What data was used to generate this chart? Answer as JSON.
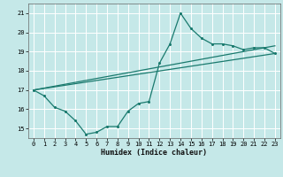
{
  "xlabel": "Humidex (Indice chaleur)",
  "bg_color": "#c5e8e8",
  "grid_color": "#ffffff",
  "line_color": "#1a7a6e",
  "xlim": [
    -0.5,
    23.5
  ],
  "ylim": [
    14.5,
    21.5
  ],
  "xticks": [
    0,
    1,
    2,
    3,
    4,
    5,
    6,
    7,
    8,
    9,
    10,
    11,
    12,
    13,
    14,
    15,
    16,
    17,
    18,
    19,
    20,
    21,
    22,
    23
  ],
  "yticks": [
    15,
    16,
    17,
    18,
    19,
    20,
    21
  ],
  "line1_x": [
    0,
    1,
    2,
    3,
    4,
    5,
    6,
    7,
    8,
    9,
    10,
    11,
    12,
    13,
    14,
    15,
    16,
    17,
    18,
    19,
    20,
    21,
    22,
    23
  ],
  "line1_y": [
    17.0,
    16.7,
    16.1,
    15.9,
    15.4,
    14.7,
    14.8,
    15.1,
    15.1,
    15.9,
    16.3,
    16.4,
    18.4,
    19.4,
    21.0,
    20.2,
    19.7,
    19.4,
    19.4,
    19.3,
    19.1,
    19.2,
    19.2,
    18.9
  ],
  "line2_x": [
    0,
    23
  ],
  "line2_y": [
    17.0,
    18.9
  ],
  "line3_x": [
    0,
    23
  ],
  "line3_y": [
    17.0,
    19.3
  ],
  "xlabel_fontsize": 6.0,
  "tick_fontsize": 5.0,
  "linewidth": 0.9,
  "markersize": 2.2
}
